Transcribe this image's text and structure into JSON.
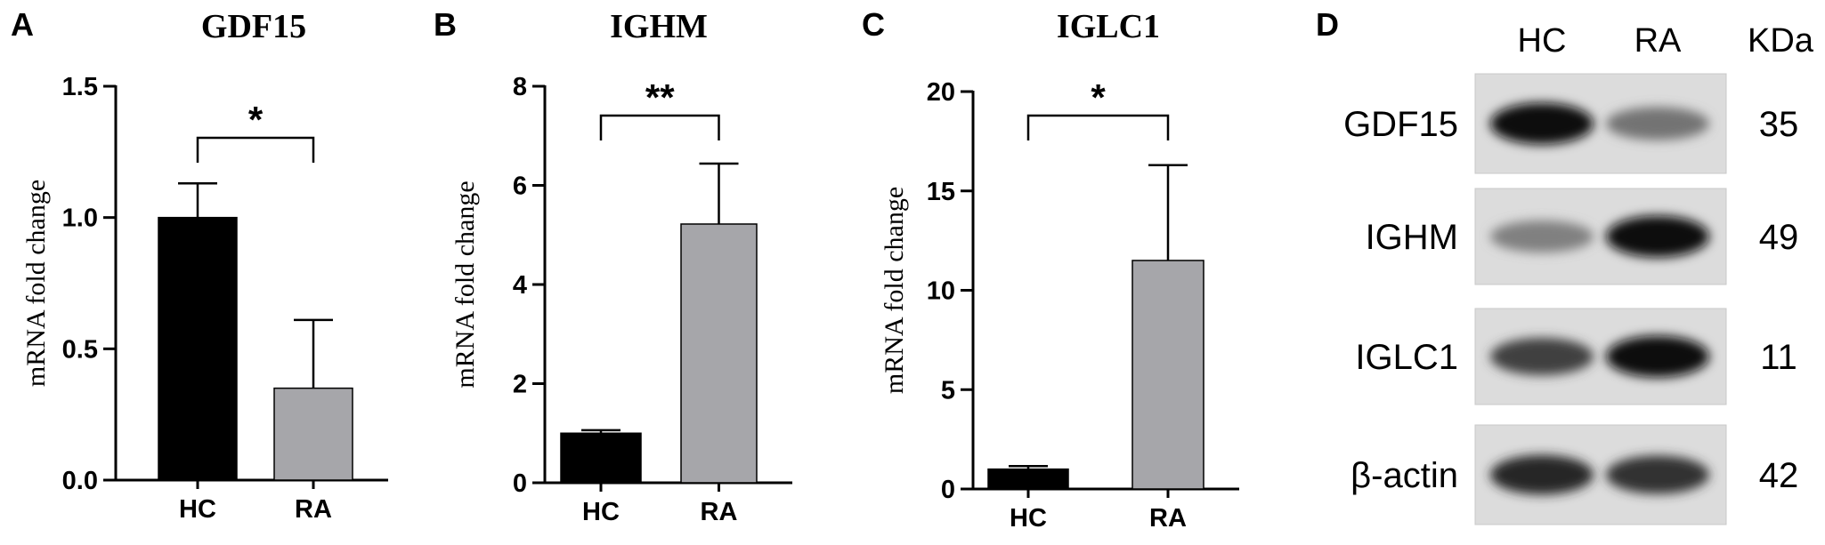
{
  "panels": [
    {
      "letter": "A",
      "title": "GDF15",
      "ylabel": "mRNA fold change",
      "significance": "*",
      "chart_data": {
        "type": "bar",
        "title": "GDF15",
        "xlabel": "",
        "ylabel": "mRNA fold change",
        "categories": [
          "HC",
          "RA"
        ],
        "values": [
          1.0,
          0.35
        ],
        "errors": [
          0.13,
          0.26
        ],
        "ylim": [
          0,
          1.5
        ],
        "yticks": [
          "0.0",
          "0.5",
          "1.0",
          "1.5"
        ],
        "bar_colors": [
          "#000000",
          "#a6a6aa"
        ],
        "significance": "*"
      }
    },
    {
      "letter": "B",
      "title": "IGHM",
      "ylabel": "mRNA fold change",
      "significance": "**",
      "chart_data": {
        "type": "bar",
        "title": "IGHM",
        "xlabel": "",
        "ylabel": "mRNA fold change",
        "categories": [
          "HC",
          "RA"
        ],
        "values": [
          1.0,
          5.22
        ],
        "errors": [
          0.06,
          1.22
        ],
        "ylim": [
          0,
          8
        ],
        "yticks": [
          "0",
          "2",
          "4",
          "6",
          "8"
        ],
        "bar_colors": [
          "#000000",
          "#a6a6aa"
        ],
        "significance": "**"
      }
    },
    {
      "letter": "C",
      "title": "IGLC1",
      "ylabel": "mRNA fold change",
      "significance": "*",
      "chart_data": {
        "type": "bar",
        "title": "IGLC1",
        "xlabel": "",
        "ylabel": "mRNA fold change",
        "categories": [
          "HC",
          "RA"
        ],
        "values": [
          1.0,
          11.5
        ],
        "errors": [
          0.15,
          4.8
        ],
        "ylim": [
          0,
          20
        ],
        "yticks": [
          "0",
          "5",
          "10",
          "15",
          "20"
        ],
        "bar_colors": [
          "#000000",
          "#a6a6aa"
        ],
        "significance": "*"
      }
    }
  ],
  "blot": {
    "letter": "D",
    "columns": [
      "HC",
      "RA"
    ],
    "unit": "KDa",
    "rows": [
      {
        "protein": "GDF15",
        "kda": "35",
        "hc_intensity": 0.95,
        "ra_intensity": 0.55
      },
      {
        "protein": "IGHM",
        "kda": "49",
        "hc_intensity": 0.5,
        "ra_intensity": 0.95
      },
      {
        "protein": "IGLC1",
        "kda": "11",
        "hc_intensity": 0.75,
        "ra_intensity": 0.95
      },
      {
        "protein": "β-actin",
        "kda": "42",
        "hc_intensity": 0.85,
        "ra_intensity": 0.8
      }
    ]
  }
}
